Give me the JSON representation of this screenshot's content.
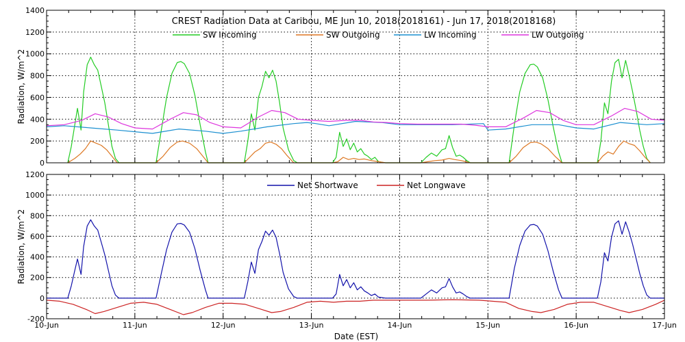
{
  "title": "CREST Radiation Data at Caribou, ME   Jun 10, 2018(2018161) - Jun 17, 2018(2018168)",
  "xlabel": "Date (EST)",
  "x_ticks": [
    "10-Jun",
    "11-Jun",
    "12-Jun",
    "13-Jun",
    "14-Jun",
    "15-Jun",
    "16-Jun",
    "17-Jun"
  ],
  "chart_data": [
    {
      "type": "line",
      "ylabel": "Radiation, W/m^2",
      "xlim": [
        0,
        7
      ],
      "ylim": [
        0,
        1400
      ],
      "y_ticks": [
        "0",
        "200",
        "400",
        "600",
        "800",
        "1000",
        "1200",
        "1400"
      ],
      "grid": true,
      "legend": "top, horizontal",
      "series": [
        {
          "name": "SW Incoming",
          "color": "#22cc22",
          "x": [
            0.24,
            0.28,
            0.32,
            0.35,
            0.39,
            0.42,
            0.46,
            0.5,
            0.54,
            0.58,
            0.62,
            0.66,
            0.7,
            0.74,
            0.78,
            0.82,
            1.24,
            1.3,
            1.36,
            1.42,
            1.48,
            1.52,
            1.56,
            1.62,
            1.68,
            1.74,
            1.8,
            1.83,
            2.24,
            2.28,
            2.32,
            2.36,
            2.4,
            2.44,
            2.48,
            2.52,
            2.56,
            2.6,
            2.64,
            2.68,
            2.74,
            2.8,
            2.84,
            3.24,
            3.28,
            3.32,
            3.36,
            3.4,
            3.44,
            3.48,
            3.52,
            3.56,
            3.6,
            3.64,
            3.68,
            3.72,
            3.76,
            3.8,
            3.84,
            4.24,
            4.3,
            4.36,
            4.42,
            4.48,
            4.52,
            4.56,
            4.6,
            4.64,
            4.68,
            4.72,
            4.76,
            4.8,
            5.24,
            5.3,
            5.36,
            5.42,
            5.48,
            5.52,
            5.56,
            5.62,
            5.68,
            5.74,
            5.8,
            5.84,
            6.24,
            6.28,
            6.32,
            6.36,
            6.4,
            6.44,
            6.48,
            6.52,
            6.56,
            6.6,
            6.64,
            6.68,
            6.72,
            6.76,
            6.8,
            6.84
          ],
          "values": [
            0,
            150,
            350,
            500,
            300,
            650,
            900,
            970,
            900,
            850,
            700,
            550,
            350,
            150,
            40,
            0,
            0,
            300,
            600,
            820,
            920,
            930,
            910,
            820,
            620,
            350,
            100,
            0,
            0,
            200,
            450,
            300,
            600,
            700,
            840,
            780,
            850,
            750,
            550,
            320,
            120,
            20,
            0,
            0,
            50,
            280,
            150,
            220,
            120,
            180,
            100,
            130,
            80,
            60,
            30,
            50,
            10,
            5,
            0,
            0,
            50,
            90,
            60,
            120,
            130,
            250,
            140,
            60,
            70,
            50,
            20,
            0,
            0,
            350,
            650,
            820,
            900,
            905,
            880,
            780,
            580,
            330,
            100,
            0,
            0,
            200,
            550,
            450,
            750,
            920,
            950,
            780,
            940,
            800,
            650,
            480,
            300,
            150,
            40,
            0
          ]
        },
        {
          "name": "SW Outgoing",
          "color": "#dd7722",
          "x": [
            0.24,
            0.32,
            0.38,
            0.44,
            0.5,
            0.56,
            0.62,
            0.68,
            0.74,
            0.8,
            1.24,
            1.32,
            1.4,
            1.48,
            1.54,
            1.62,
            1.7,
            1.78,
            1.83,
            2.24,
            2.3,
            2.36,
            2.42,
            2.48,
            2.54,
            2.6,
            2.66,
            2.72,
            2.8,
            3.24,
            3.3,
            3.36,
            3.42,
            3.48,
            3.54,
            3.6,
            3.68,
            3.76,
            3.84,
            4.24,
            4.32,
            4.4,
            4.48,
            4.56,
            4.62,
            4.7,
            4.8,
            5.24,
            5.32,
            5.4,
            5.48,
            5.54,
            5.6,
            5.68,
            5.76,
            5.84,
            6.24,
            6.3,
            6.36,
            6.42,
            6.48,
            6.54,
            6.6,
            6.66,
            6.72,
            6.78,
            6.84
          ],
          "values": [
            0,
            40,
            80,
            130,
            200,
            180,
            160,
            120,
            60,
            0,
            0,
            60,
            140,
            190,
            200,
            180,
            130,
            50,
            0,
            0,
            50,
            100,
            130,
            180,
            190,
            170,
            130,
            70,
            0,
            0,
            10,
            50,
            30,
            40,
            30,
            35,
            20,
            10,
            0,
            0,
            10,
            20,
            25,
            40,
            30,
            20,
            0,
            0,
            60,
            140,
            185,
            190,
            175,
            130,
            60,
            0,
            0,
            60,
            100,
            80,
            150,
            200,
            175,
            160,
            110,
            50,
            0
          ]
        },
        {
          "name": "LW Incoming",
          "color": "#1a8fd0",
          "x": [
            0.0,
            0.2,
            0.5,
            0.8,
            1.0,
            1.2,
            1.5,
            1.8,
            2.0,
            2.2,
            2.5,
            2.8,
            2.95,
            3.05,
            3.2,
            3.5,
            3.8,
            4.0,
            4.3,
            4.6,
            4.95,
            5.0,
            5.2,
            5.5,
            5.8,
            6.0,
            6.2,
            6.5,
            6.8,
            7.0
          ],
          "values": [
            330,
            340,
            320,
            300,
            285,
            270,
            310,
            290,
            270,
            290,
            330,
            360,
            370,
            360,
            340,
            380,
            370,
            350,
            350,
            350,
            360,
            300,
            310,
            350,
            350,
            320,
            310,
            370,
            350,
            360
          ]
        },
        {
          "name": "LW Outgoing",
          "color": "#dd33dd",
          "x": [
            0.0,
            0.2,
            0.4,
            0.55,
            0.7,
            0.85,
            1.0,
            1.2,
            1.4,
            1.55,
            1.7,
            1.85,
            2.0,
            2.2,
            2.4,
            2.55,
            2.7,
            2.85,
            3.0,
            3.2,
            3.4,
            3.55,
            3.7,
            3.85,
            4.0,
            4.2,
            4.4,
            4.55,
            4.7,
            4.85,
            5.0,
            5.2,
            5.4,
            5.55,
            5.7,
            5.85,
            6.0,
            6.2,
            6.4,
            6.55,
            6.7,
            6.85,
            7.0
          ],
          "values": [
            340,
            350,
            390,
            450,
            420,
            360,
            320,
            310,
            400,
            460,
            440,
            370,
            330,
            320,
            420,
            480,
            460,
            400,
            390,
            380,
            390,
            390,
            375,
            370,
            360,
            355,
            355,
            355,
            355,
            345,
            330,
            330,
            410,
            480,
            460,
            390,
            350,
            350,
            430,
            500,
            470,
            400,
            390
          ]
        }
      ]
    },
    {
      "type": "line",
      "ylabel": "Radiation, W/m^2",
      "xlim": [
        0,
        7
      ],
      "ylim": [
        -200,
        1200
      ],
      "y_ticks": [
        "-200",
        "0",
        "200",
        "400",
        "600",
        "800",
        "1000",
        "1200"
      ],
      "grid": true,
      "legend": "top, horizontal",
      "series": [
        {
          "name": "Net Shortwave",
          "color": "#1111aa",
          "x": [
            0.0,
            0.2,
            0.24,
            0.28,
            0.32,
            0.35,
            0.39,
            0.42,
            0.46,
            0.5,
            0.54,
            0.58,
            0.62,
            0.66,
            0.7,
            0.74,
            0.78,
            0.82,
            1.24,
            1.3,
            1.36,
            1.42,
            1.48,
            1.52,
            1.56,
            1.62,
            1.68,
            1.74,
            1.8,
            1.83,
            2.24,
            2.28,
            2.32,
            2.36,
            2.4,
            2.44,
            2.48,
            2.52,
            2.56,
            2.6,
            2.64,
            2.68,
            2.74,
            2.8,
            2.84,
            3.24,
            3.28,
            3.32,
            3.36,
            3.4,
            3.44,
            3.48,
            3.52,
            3.56,
            3.6,
            3.64,
            3.68,
            3.72,
            3.76,
            3.8,
            3.84,
            4.24,
            4.3,
            4.36,
            4.42,
            4.48,
            4.52,
            4.56,
            4.6,
            4.64,
            4.68,
            4.72,
            4.76,
            4.8,
            5.24,
            5.3,
            5.36,
            5.42,
            5.48,
            5.52,
            5.56,
            5.62,
            5.68,
            5.74,
            5.8,
            5.84,
            6.24,
            6.28,
            6.32,
            6.36,
            6.4,
            6.44,
            6.48,
            6.52,
            6.56,
            6.6,
            6.64,
            6.68,
            6.72,
            6.76,
            6.8,
            6.84,
            7.0
          ],
          "values": [
            0,
            0,
            0,
            120,
            270,
            380,
            230,
            500,
            700,
            760,
            700,
            660,
            540,
            420,
            270,
            120,
            30,
            0,
            0,
            240,
            470,
            640,
            720,
            725,
            710,
            640,
            480,
            270,
            80,
            0,
            0,
            160,
            350,
            240,
            470,
            550,
            650,
            610,
            660,
            590,
            430,
            250,
            90,
            15,
            0,
            0,
            40,
            230,
            120,
            180,
            100,
            150,
            80,
            110,
            70,
            50,
            25,
            40,
            10,
            5,
            0,
            0,
            40,
            80,
            50,
            100,
            110,
            190,
            110,
            50,
            60,
            40,
            15,
            0,
            0,
            290,
            510,
            650,
            710,
            715,
            700,
            620,
            460,
            260,
            80,
            0,
            0,
            160,
            440,
            360,
            590,
            720,
            750,
            620,
            740,
            640,
            520,
            380,
            240,
            120,
            30,
            0,
            0
          ]
        },
        {
          "name": "Net Longwave",
          "color": "#cc2222",
          "x": [
            0.0,
            0.15,
            0.3,
            0.45,
            0.55,
            0.65,
            0.8,
            0.95,
            1.1,
            1.25,
            1.4,
            1.55,
            1.65,
            1.8,
            1.95,
            2.1,
            2.25,
            2.4,
            2.55,
            2.65,
            2.8,
            2.95,
            3.1,
            3.25,
            3.4,
            3.55,
            3.7,
            3.85,
            4.0,
            4.3,
            4.6,
            4.9,
            5.05,
            5.2,
            5.35,
            5.5,
            5.6,
            5.75,
            5.9,
            6.05,
            6.2,
            6.35,
            6.5,
            6.6,
            6.75,
            6.9,
            7.0
          ],
          "values": [
            -20,
            -30,
            -60,
            -110,
            -150,
            -130,
            -90,
            -50,
            -40,
            -60,
            -110,
            -160,
            -140,
            -90,
            -50,
            -50,
            -60,
            -100,
            -140,
            -130,
            -90,
            -40,
            -30,
            -40,
            -30,
            -30,
            -20,
            -20,
            -20,
            -20,
            -15,
            -20,
            -30,
            -40,
            -100,
            -130,
            -140,
            -110,
            -60,
            -40,
            -40,
            -80,
            -120,
            -140,
            -110,
            -60,
            -20
          ]
        }
      ]
    }
  ]
}
